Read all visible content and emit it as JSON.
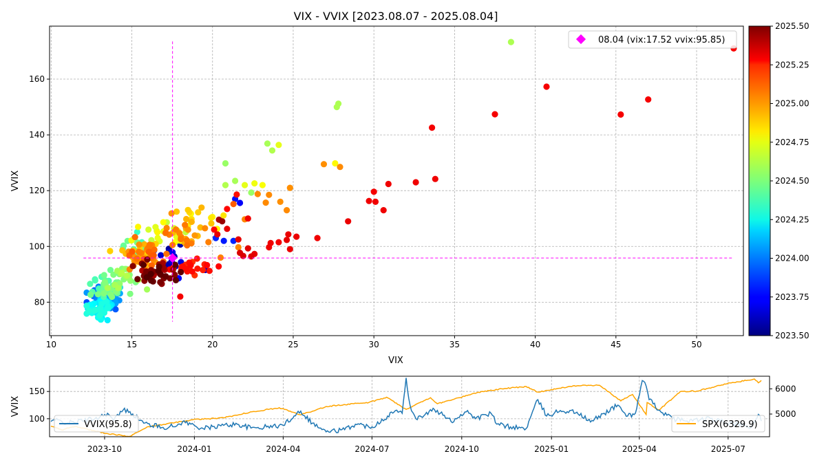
{
  "chart_data": [
    {
      "type": "scatter",
      "title": "VIX - VVIX [2023.08.07 - 2025.08.04]",
      "xlabel": "VIX",
      "ylabel": "VVIX",
      "xlim": [
        9.9,
        52.9
      ],
      "ylim": [
        68,
        179
      ],
      "xticks": [
        10,
        15,
        20,
        25,
        30,
        35,
        40,
        45,
        50
      ],
      "yticks": [
        80,
        100,
        120,
        140,
        160
      ],
      "grid": true,
      "colormap": "jet",
      "colorbar": {
        "min": 2023.5,
        "max": 2025.5,
        "ticks": [
          "2023.50",
          "2023.75",
          "2024.00",
          "2024.25",
          "2024.50",
          "2024.75",
          "2025.00",
          "2025.25",
          "2025.50"
        ]
      },
      "reference_lines": {
        "vix": 17.52,
        "vvix": 95.85,
        "color": "#ff00ff"
      },
      "legend": {
        "position": "top-right",
        "entries": [
          {
            "label": "08.04 (vix:17.52 vvix:95.85)",
            "marker": "diamond",
            "color": "#ff00ff"
          }
        ]
      },
      "latest_point": {
        "vix": 17.52,
        "vvix": 95.85
      },
      "outlier_points": [
        {
          "vix": 52.3,
          "vvix": 171,
          "t": 2025.26
        },
        {
          "vix": 47.0,
          "vvix": 152.7,
          "t": 2025.27
        },
        {
          "vix": 45.3,
          "vvix": 147.3,
          "t": 2025.27
        },
        {
          "vix": 40.7,
          "vvix": 157.3,
          "t": 2025.27
        },
        {
          "vix": 37.5,
          "vvix": 147.4,
          "t": 2025.27
        },
        {
          "vix": 38.5,
          "vvix": 173.3,
          "t": 2024.59
        },
        {
          "vix": 33.6,
          "vvix": 142.6,
          "t": 2025.27
        },
        {
          "vix": 33.8,
          "vvix": 124.2,
          "t": 2025.28
        },
        {
          "vix": 32.6,
          "vvix": 123.0,
          "t": 2025.28
        },
        {
          "vix": 30.9,
          "vvix": 122.4,
          "t": 2025.28
        },
        {
          "vix": 30.0,
          "vvix": 119.6,
          "t": 2025.27
        },
        {
          "vix": 29.7,
          "vvix": 116.3,
          "t": 2025.28
        },
        {
          "vix": 30.1,
          "vvix": 116.0,
          "t": 2025.28
        },
        {
          "vix": 30.6,
          "vvix": 113.0,
          "t": 2025.28
        },
        {
          "vix": 28.4,
          "vvix": 109.0,
          "t": 2025.29
        },
        {
          "vix": 27.8,
          "vvix": 151.2,
          "t": 2024.59
        },
        {
          "vix": 27.7,
          "vvix": 150.0,
          "t": 2024.59
        },
        {
          "vix": 26.9,
          "vvix": 129.5,
          "t": 2024.97
        },
        {
          "vix": 27.6,
          "vvix": 129.8,
          "t": 2024.76
        },
        {
          "vix": 27.9,
          "vvix": 128.5,
          "t": 2024.98
        },
        {
          "vix": 26.5,
          "vvix": 103.0,
          "t": 2025.28
        },
        {
          "vix": 25.2,
          "vvix": 103.5,
          "t": 2025.29
        },
        {
          "vix": 24.7,
          "vvix": 104.3,
          "t": 2025.29
        },
        {
          "vix": 24.8,
          "vvix": 99.0,
          "t": 2025.29
        },
        {
          "vix": 24.6,
          "vvix": 102.3,
          "t": 2025.3
        },
        {
          "vix": 24.8,
          "vvix": 121.0,
          "t": 2024.97
        },
        {
          "vix": 24.6,
          "vvix": 113.0,
          "t": 2024.98
        },
        {
          "vix": 24.2,
          "vvix": 116.0,
          "t": 2024.97
        },
        {
          "vix": 24.1,
          "vvix": 101.5,
          "t": 2025.27
        },
        {
          "vix": 23.4,
          "vvix": 136.9,
          "t": 2024.58
        },
        {
          "vix": 24.1,
          "vvix": 136.4,
          "t": 2024.7
        },
        {
          "vix": 23.7,
          "vvix": 134.4,
          "t": 2024.6
        },
        {
          "vix": 23.6,
          "vvix": 101.2,
          "t": 2025.28
        },
        {
          "vix": 23.5,
          "vvix": 99.7,
          "t": 2025.28
        },
        {
          "vix": 22.6,
          "vvix": 97.3,
          "t": 2025.3
        },
        {
          "vix": 22.4,
          "vvix": 96.4,
          "t": 2025.31
        },
        {
          "vix": 22.2,
          "vvix": 99.3,
          "t": 2025.31
        },
        {
          "vix": 22.2,
          "vvix": 110.0,
          "t": 2025.28
        },
        {
          "vix": 21.9,
          "vvix": 96.6,
          "t": 2025.32
        },
        {
          "vix": 21.7,
          "vvix": 97.7,
          "t": 2025.32
        },
        {
          "vix": 21.6,
          "vvix": 102.5,
          "t": 2025.3
        },
        {
          "vix": 21.6,
          "vvix": 99.7,
          "t": 2024.98
        },
        {
          "vix": 21.5,
          "vvix": 118.6,
          "t": 2025.22
        },
        {
          "vix": 21.3,
          "vvix": 115.2,
          "t": 2025.07
        },
        {
          "vix": 21.7,
          "vvix": 115.6,
          "t": 2023.74
        },
        {
          "vix": 21.4,
          "vvix": 117.0,
          "t": 2023.78
        },
        {
          "vix": 21.3,
          "vvix": 102.0,
          "t": 2023.82
        },
        {
          "vix": 20.7,
          "vvix": 102.0,
          "t": 2023.8
        },
        {
          "vix": 20.5,
          "vvix": 96.0,
          "t": 2025.0
        },
        {
          "vix": 20.9,
          "vvix": 113.4,
          "t": 2025.24
        },
        {
          "vix": 20.8,
          "vvix": 129.8,
          "t": 2024.55
        },
        {
          "vix": 21.4,
          "vvix": 123.5,
          "t": 2024.58
        },
        {
          "vix": 20.8,
          "vvix": 122.0,
          "t": 2024.6
        },
        {
          "vix": 20.6,
          "vvix": 109.0,
          "t": 2025.45
        },
        {
          "vix": 20.4,
          "vvix": 109.6,
          "t": 2025.42
        },
        {
          "vix": 20.9,
          "vvix": 106.3,
          "t": 2025.3
        },
        {
          "vix": 20.3,
          "vvix": 104.3,
          "t": 2025.3
        },
        {
          "vix": 20.2,
          "vvix": 103.0,
          "t": 2023.82
        },
        {
          "vix": 20.1,
          "vvix": 106.0,
          "t": 2025.25
        },
        {
          "vix": 22.0,
          "vvix": 122.0,
          "t": 2024.7
        },
        {
          "vix": 22.6,
          "vvix": 122.6,
          "t": 2024.72
        },
        {
          "vix": 23.1,
          "vvix": 122.0,
          "t": 2024.74
        },
        {
          "vix": 22.4,
          "vvix": 119.3,
          "t": 2024.55
        },
        {
          "vix": 22.8,
          "vvix": 118.8,
          "t": 2024.98
        },
        {
          "vix": 23.5,
          "vvix": 118.5,
          "t": 2024.98
        },
        {
          "vix": 23.3,
          "vvix": 115.7,
          "t": 2024.98
        },
        {
          "vix": 22.0,
          "vvix": 109.7,
          "t": 2024.99
        },
        {
          "vix": 18.0,
          "vvix": 82.0,
          "t": 2025.27
        }
      ]
    },
    {
      "type": "line",
      "xticks": [
        "2023-10",
        "2024-01",
        "2024-04",
        "2024-07",
        "2024-10",
        "2025-01",
        "2025-04",
        "2025-07"
      ],
      "ylabel": "VVIX",
      "y_left_ticks": [
        100,
        150
      ],
      "y_left_lim": [
        67,
        178
      ],
      "y_right_ticks": [
        5000,
        6000
      ],
      "y_right_lim": [
        4100,
        6500
      ],
      "grid": true,
      "series": [
        {
          "name": "VVIX(95.8)",
          "axis": "left",
          "color": "#1f77b4",
          "legend_position": "left"
        },
        {
          "name": "SPX(6329.9)",
          "axis": "right",
          "color": "#ffa500",
          "legend_position": "right"
        }
      ],
      "vvix_anchors": [
        [
          "2023-08-07",
          95
        ],
        [
          "2023-08-10",
          98
        ],
        [
          "2023-08-24",
          92
        ],
        [
          "2023-09-21",
          100
        ],
        [
          "2023-10-04",
          110
        ],
        [
          "2023-10-10",
          97
        ],
        [
          "2023-10-20",
          116
        ],
        [
          "2023-10-27",
          113
        ],
        [
          "2023-11-10",
          92
        ],
        [
          "2023-11-30",
          84
        ],
        [
          "2023-12-14",
          87
        ],
        [
          "2023-12-20",
          95
        ],
        [
          "2024-01-10",
          82
        ],
        [
          "2024-01-31",
          88
        ],
        [
          "2024-02-14",
          90
        ],
        [
          "2024-02-28",
          83
        ],
        [
          "2024-03-15",
          85
        ],
        [
          "2024-04-01",
          88
        ],
        [
          "2024-04-15",
          110
        ],
        [
          "2024-04-19",
          114
        ],
        [
          "2024-05-01",
          92
        ],
        [
          "2024-05-15",
          76
        ],
        [
          "2024-06-03",
          80
        ],
        [
          "2024-06-14",
          90
        ],
        [
          "2024-07-01",
          85
        ],
        [
          "2024-07-17",
          105
        ],
        [
          "2024-07-25",
          115
        ],
        [
          "2024-08-01",
          110
        ],
        [
          "2024-08-05",
          175
        ],
        [
          "2024-08-09",
          125
        ],
        [
          "2024-08-15",
          100
        ],
        [
          "2024-09-03",
          117
        ],
        [
          "2024-09-09",
          110
        ],
        [
          "2024-09-20",
          95
        ],
        [
          "2024-10-07",
          115
        ],
        [
          "2024-10-15",
          100
        ],
        [
          "2024-10-31",
          110
        ],
        [
          "2024-11-06",
          90
        ],
        [
          "2024-11-20",
          85
        ],
        [
          "2024-12-06",
          82
        ],
        [
          "2024-12-18",
          135
        ],
        [
          "2024-12-27",
          105
        ],
        [
          "2025-01-10",
          115
        ],
        [
          "2025-01-27",
          112
        ],
        [
          "2025-02-10",
          94
        ],
        [
          "2025-02-24",
          110
        ],
        [
          "2025-03-10",
          125
        ],
        [
          "2025-03-20",
          105
        ],
        [
          "2025-03-28",
          110
        ],
        [
          "2025-04-04",
          170
        ],
        [
          "2025-04-08",
          160
        ],
        [
          "2025-04-11",
          135
        ],
        [
          "2025-04-22",
          115
        ],
        [
          "2025-05-05",
          100
        ],
        [
          "2025-05-20",
          96
        ],
        [
          "2025-06-13",
          100
        ],
        [
          "2025-06-23",
          95
        ],
        [
          "2025-07-15",
          88
        ],
        [
          "2025-07-25",
          85
        ],
        [
          "2025-08-01",
          108
        ],
        [
          "2025-08-04",
          95.8
        ]
      ],
      "spx_anchors": [
        [
          "2023-08-07",
          4520
        ],
        [
          "2023-08-18",
          4370
        ],
        [
          "2023-09-01",
          4515
        ],
        [
          "2023-09-21",
          4330
        ],
        [
          "2023-10-03",
          4230
        ],
        [
          "2023-10-27",
          4117
        ],
        [
          "2023-11-15",
          4500
        ],
        [
          "2023-12-01",
          4590
        ],
        [
          "2023-12-29",
          4770
        ],
        [
          "2024-01-31",
          4850
        ],
        [
          "2024-02-29",
          5090
        ],
        [
          "2024-03-28",
          5250
        ],
        [
          "2024-04-19",
          4967
        ],
        [
          "2024-05-15",
          5300
        ],
        [
          "2024-06-28",
          5460
        ],
        [
          "2024-07-16",
          5667
        ],
        [
          "2024-08-05",
          5186
        ],
        [
          "2024-08-30",
          5650
        ],
        [
          "2024-09-06",
          5408
        ],
        [
          "2024-10-18",
          5864
        ],
        [
          "2024-11-11",
          6001
        ],
        [
          "2024-12-06",
          6090
        ],
        [
          "2024-12-18",
          5872
        ],
        [
          "2025-01-23",
          6119
        ],
        [
          "2025-02-19",
          6144
        ],
        [
          "2025-03-13",
          5521
        ],
        [
          "2025-03-25",
          5777
        ],
        [
          "2025-04-08",
          4982
        ],
        [
          "2025-04-09",
          5456
        ],
        [
          "2025-04-21",
          5158
        ],
        [
          "2025-05-13",
          5890
        ],
        [
          "2025-05-30",
          5911
        ],
        [
          "2025-06-30",
          6205
        ],
        [
          "2025-07-28",
          6389
        ],
        [
          "2025-08-01",
          6238
        ],
        [
          "2025-08-04",
          6329.9
        ]
      ]
    }
  ]
}
